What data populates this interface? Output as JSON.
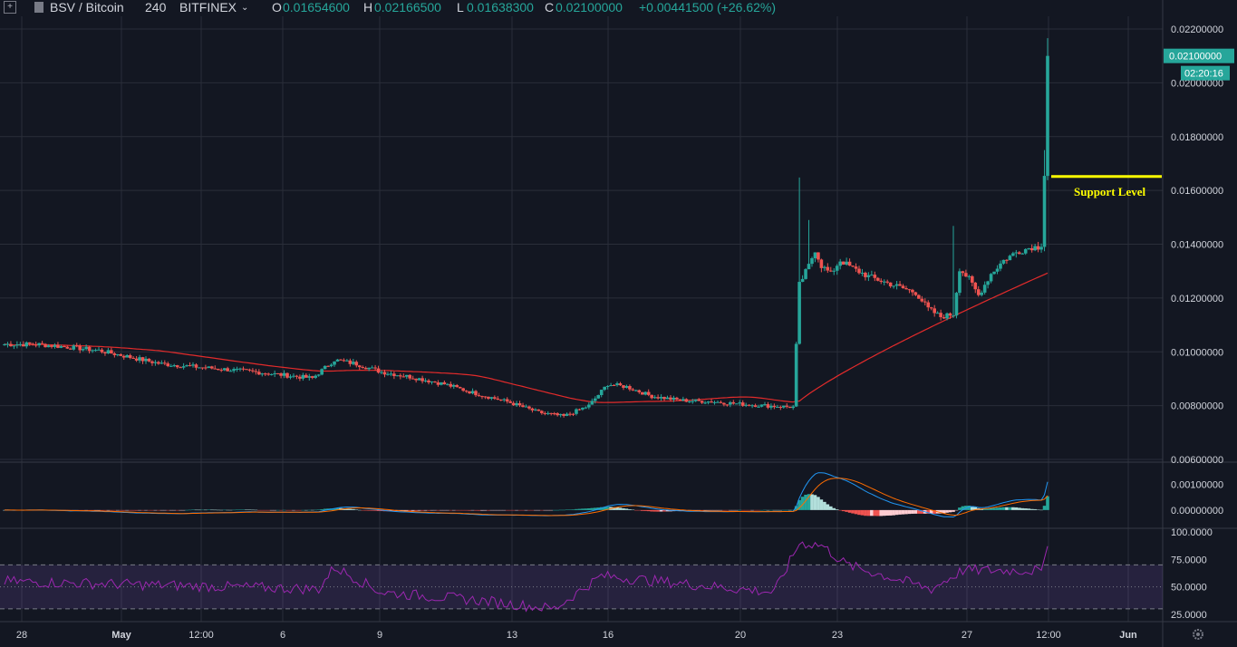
{
  "header": {
    "symbol": "BSV / Bitcoin",
    "interval": "240",
    "exchange": "BITFINEX",
    "open_label": "O",
    "open": "0.01654600",
    "high_label": "H",
    "high": "0.02166500",
    "low_label": "L",
    "low": "0.01638300",
    "close_label": "C",
    "close": "0.02100000",
    "change": "+0.00441500 (+26.62%)"
  },
  "price_axis": {
    "ticks": [
      "0.02200000",
      "0.02000000",
      "0.01800000",
      "0.01600000",
      "0.01400000",
      "0.01200000",
      "0.01000000",
      "0.00800000",
      "0.00600000"
    ],
    "last_price": "0.02100000",
    "countdown": "02:20:16"
  },
  "macd_axis": {
    "ticks": [
      "0.00100000",
      "0.00000000"
    ]
  },
  "rsi_axis": {
    "ticks": [
      "100.0000",
      "75.0000",
      "50.0000",
      "25.0000"
    ]
  },
  "time_axis": {
    "ticks": [
      "28",
      "May",
      "12:00",
      "6",
      "9",
      "13",
      "16",
      "20",
      "23",
      "27",
      "12:00",
      "Jun"
    ]
  },
  "annotation": {
    "label": "Support Level",
    "price": 0.01652,
    "color": "#ffff00"
  },
  "colors": {
    "up": "#26a69a",
    "down": "#ef5350",
    "ma": "#e22b2b",
    "macd": "#2196f3",
    "signal": "#ff6d00",
    "rsi": "#9c27b0",
    "background": "#131722"
  },
  "chart_data": {
    "type": "candlestick",
    "price_range": [
      0.006,
      0.022
    ],
    "anchor_closes": [
      [
        0,
        0.01028
      ],
      [
        10,
        0.01028
      ],
      [
        20,
        0.01018
      ],
      [
        30,
        0.01005
      ],
      [
        40,
        0.0098
      ],
      [
        50,
        0.00955
      ],
      [
        60,
        0.00945
      ],
      [
        70,
        0.00935
      ],
      [
        80,
        0.00925
      ],
      [
        90,
        0.00912
      ],
      [
        98,
        0.00902
      ],
      [
        105,
        0.0097
      ],
      [
        112,
        0.00955
      ],
      [
        120,
        0.00925
      ],
      [
        130,
        0.00905
      ],
      [
        140,
        0.0088
      ],
      [
        150,
        0.00845
      ],
      [
        160,
        0.00815
      ],
      [
        170,
        0.00775
      ],
      [
        178,
        0.0076
      ],
      [
        186,
        0.008
      ],
      [
        192,
        0.0088
      ],
      [
        198,
        0.0087
      ],
      [
        206,
        0.00835
      ],
      [
        215,
        0.0082
      ],
      [
        225,
        0.00815
      ],
      [
        235,
        0.00805
      ],
      [
        245,
        0.00798
      ],
      [
        251,
        0.00795
      ],
      [
        253,
        0.0125
      ],
      [
        256,
        0.0132
      ],
      [
        258,
        0.0138
      ],
      [
        260,
        0.0132
      ],
      [
        263,
        0.0129
      ],
      [
        266,
        0.0134
      ],
      [
        270,
        0.0131
      ],
      [
        275,
        0.0128
      ],
      [
        280,
        0.0126
      ],
      [
        285,
        0.0124
      ],
      [
        290,
        0.0122
      ],
      [
        294,
        0.0116
      ],
      [
        298,
        0.0113
      ],
      [
        302,
        0.0114
      ],
      [
        304,
        0.0131
      ],
      [
        307,
        0.0127
      ],
      [
        310,
        0.0121
      ],
      [
        314,
        0.0129
      ],
      [
        318,
        0.0134
      ],
      [
        322,
        0.0137
      ],
      [
        327,
        0.0139
      ],
      [
        330,
        0.0139
      ],
      [
        331,
        0.0165
      ],
      [
        332,
        0.021
      ]
    ],
    "ma_last": 0.01298,
    "macd_range": [
      -0.0005,
      0.0018
    ],
    "rsi_range": [
      20,
      100
    ],
    "rsi_bands": [
      70,
      50,
      30
    ],
    "notable_rsi": [
      [
        0,
        55
      ],
      [
        100,
        48
      ],
      [
        105,
        68
      ],
      [
        120,
        45
      ],
      [
        150,
        38
      ],
      [
        175,
        30
      ],
      [
        190,
        60
      ],
      [
        245,
        45
      ],
      [
        253,
        90
      ],
      [
        260,
        88
      ],
      [
        268,
        70
      ],
      [
        295,
        48
      ],
      [
        305,
        65
      ],
      [
        330,
        65
      ],
      [
        332,
        87
      ]
    ]
  }
}
